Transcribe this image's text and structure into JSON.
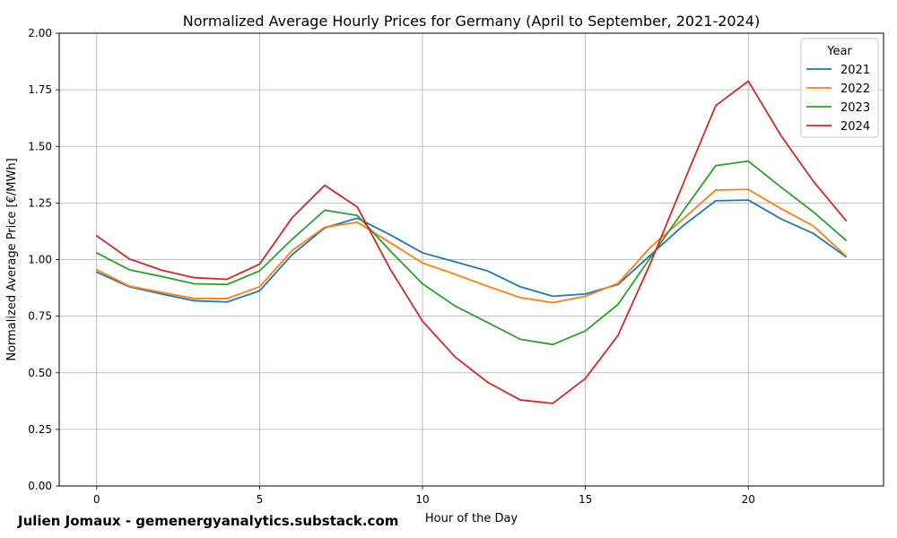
{
  "chart_data": {
    "type": "line",
    "title": "Normalized Average Hourly Prices for Germany (April to September, 2021-2024)",
    "xlabel": "Hour of the Day",
    "ylabel": "Normalized Average Price [€/MWh]",
    "xlim": [
      -1.15,
      24.15
    ],
    "ylim": [
      0,
      2
    ],
    "xticks": [
      0,
      5,
      10,
      15,
      20
    ],
    "yticks": [
      0,
      0.25,
      0.5,
      0.75,
      1.0,
      1.25,
      1.5,
      1.75,
      2.0
    ],
    "ytick_labels": [
      "0.00",
      "0.25",
      "0.50",
      "0.75",
      "1.00",
      "1.25",
      "1.50",
      "1.75",
      "2.00"
    ],
    "grid": true,
    "legend": {
      "title": "Year",
      "placement": "top-right"
    },
    "x": [
      0,
      1,
      2,
      3,
      4,
      5,
      6,
      7,
      8,
      9,
      10,
      11,
      12,
      13,
      14,
      15,
      16,
      17,
      18,
      19,
      20,
      21,
      22,
      23
    ],
    "series": [
      {
        "name": "2021",
        "color": "#1f77b4",
        "values": [
          0.945,
          0.88,
          0.848,
          0.818,
          0.813,
          0.862,
          1.022,
          1.14,
          1.183,
          1.11,
          1.03,
          0.99,
          0.95,
          0.88,
          0.838,
          0.848,
          0.89,
          1.02,
          1.15,
          1.26,
          1.263,
          1.18,
          1.115,
          1.012
        ]
      },
      {
        "name": "2022",
        "color": "#ff7f0e",
        "values": [
          0.955,
          0.883,
          0.855,
          0.828,
          0.828,
          0.88,
          1.04,
          1.143,
          1.165,
          1.075,
          0.985,
          0.935,
          0.882,
          0.832,
          0.81,
          0.838,
          0.895,
          1.055,
          1.18,
          1.307,
          1.31,
          1.225,
          1.148,
          1.015
        ]
      },
      {
        "name": "2023",
        "color": "#2ca02c",
        "values": [
          1.03,
          0.955,
          0.925,
          0.893,
          0.89,
          0.95,
          1.09,
          1.218,
          1.195,
          1.04,
          0.893,
          0.795,
          0.722,
          0.648,
          0.625,
          0.685,
          0.802,
          1.01,
          1.215,
          1.415,
          1.435,
          1.32,
          1.21,
          1.085
        ]
      },
      {
        "name": "2024",
        "color": "#d62728",
        "values": [
          1.105,
          1.003,
          0.953,
          0.92,
          0.913,
          0.98,
          1.185,
          1.328,
          1.232,
          0.96,
          0.728,
          0.57,
          0.458,
          0.38,
          0.365,
          0.475,
          0.665,
          0.985,
          1.335,
          1.68,
          1.788,
          1.548,
          1.345,
          1.172
        ]
      }
    ]
  },
  "credit": "Julien Jomaux - gemenergyanalytics.substack.com"
}
